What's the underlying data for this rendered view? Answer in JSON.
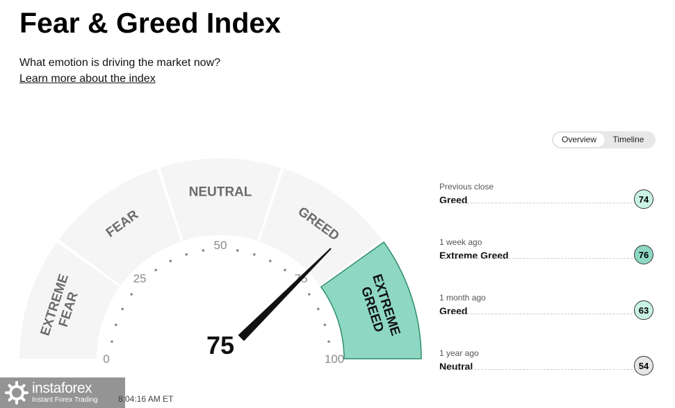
{
  "header": {
    "title": "Fear & Greed Index",
    "subtitle": "What emotion is driving the market now?",
    "learn_link": "Learn more about the index"
  },
  "view_toggle": {
    "options": [
      "Overview",
      "Timeline"
    ],
    "selected": "Overview"
  },
  "gauge": {
    "value": "75",
    "value_number": 75,
    "segments": [
      "EXTREME FEAR",
      "FEAR",
      "NEUTRAL",
      "GREED",
      "EXTREME GREED"
    ],
    "active_segment": "EXTREME GREED",
    "ticks": [
      "0",
      "25",
      "50",
      "75",
      "100"
    ],
    "colors": {
      "segment_bg": "#f5f5f5",
      "active_fill": "#8ed8c3",
      "active_border": "#2d8c6a",
      "needle": "#111111",
      "label": "#6b6b6b"
    }
  },
  "history": [
    {
      "period": "Previous close",
      "rating": "Greed",
      "value": "74",
      "color": "#c9f2e6"
    },
    {
      "period": "1 week ago",
      "rating": "Extreme Greed",
      "value": "76",
      "color": "#8ed8c3"
    },
    {
      "period": "1 month ago",
      "rating": "Greed",
      "value": "63",
      "color": "#c9f2e6"
    },
    {
      "period": "1 year ago",
      "rating": "Neutral",
      "value": "54",
      "color": "#e6e6e6"
    }
  ],
  "footer": {
    "updated_text": "8:04:16 AM ET"
  },
  "watermark": {
    "brand": "instaforex",
    "tagline": "Instant Forex Trading",
    "icon": "instaforex-logo-icon"
  }
}
